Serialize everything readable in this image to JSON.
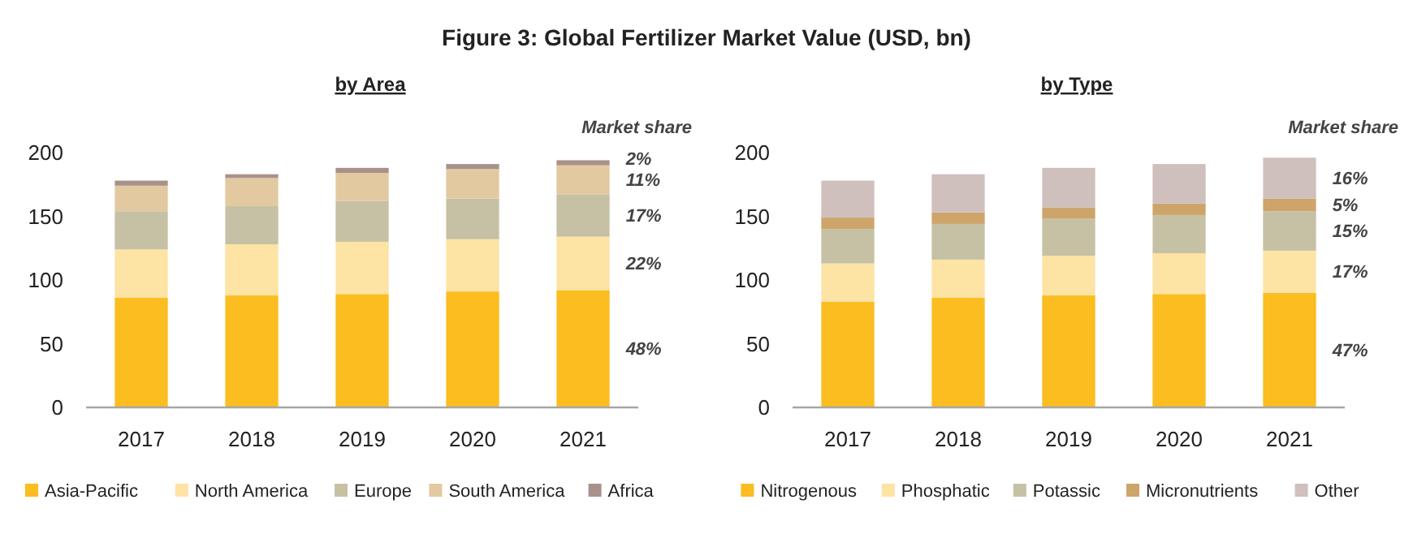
{
  "chart_data": [
    {
      "type": "bar",
      "title": "Figure 3: Global Fertilizer Market Value (USD, bn)",
      "subtitle": "by Area",
      "stacked": true,
      "categories": [
        "2017",
        "2018",
        "2019",
        "2020",
        "2021"
      ],
      "ylim": [
        0,
        200
      ],
      "yticks": [
        0,
        50,
        100,
        150,
        200
      ],
      "grid": false,
      "legend": "bottom",
      "series": [
        {
          "name": "Asia-Pacific",
          "color": "#fbbd1f",
          "values": [
            86,
            88,
            89,
            91,
            92
          ]
        },
        {
          "name": "North America",
          "color": "#fde3a4",
          "values": [
            38,
            40,
            41,
            41,
            42
          ]
        },
        {
          "name": "Europe",
          "color": "#c6c1a4",
          "values": [
            30,
            30,
            32,
            32,
            33
          ]
        },
        {
          "name": "South America",
          "color": "#e2c9a0",
          "values": [
            20,
            22,
            22,
            23,
            23
          ]
        },
        {
          "name": "Africa",
          "color": "#a9918b",
          "values": [
            4,
            3,
            4,
            4,
            4
          ]
        }
      ],
      "annotations": [
        "Market share",
        "48%",
        "22%",
        "17%",
        "11%",
        "2%"
      ]
    },
    {
      "type": "bar",
      "subtitle": "by Type",
      "stacked": true,
      "categories": [
        "2017",
        "2018",
        "2019",
        "2020",
        "2021"
      ],
      "ylim": [
        0,
        200
      ],
      "yticks": [
        0,
        50,
        100,
        150,
        200
      ],
      "grid": false,
      "legend": "bottom",
      "series": [
        {
          "name": "Nitrogenous",
          "color": "#fbbd1f",
          "values": [
            83,
            86,
            88,
            89,
            90
          ]
        },
        {
          "name": "Phosphatic",
          "color": "#fde3a4",
          "values": [
            30,
            30,
            31,
            32,
            33
          ]
        },
        {
          "name": "Potassic",
          "color": "#c6c1a4",
          "values": [
            27,
            28,
            29,
            30,
            31
          ]
        },
        {
          "name": "Micronutrients",
          "color": "#cda56a",
          "values": [
            9,
            9,
            9,
            9,
            10
          ]
        },
        {
          "name": "Other",
          "color": "#cfbfbd",
          "values": [
            29,
            30,
            31,
            31,
            32
          ]
        }
      ],
      "annotations": [
        "Market share",
        "47%",
        "17%",
        "15%",
        "5%",
        "16%"
      ]
    }
  ]
}
